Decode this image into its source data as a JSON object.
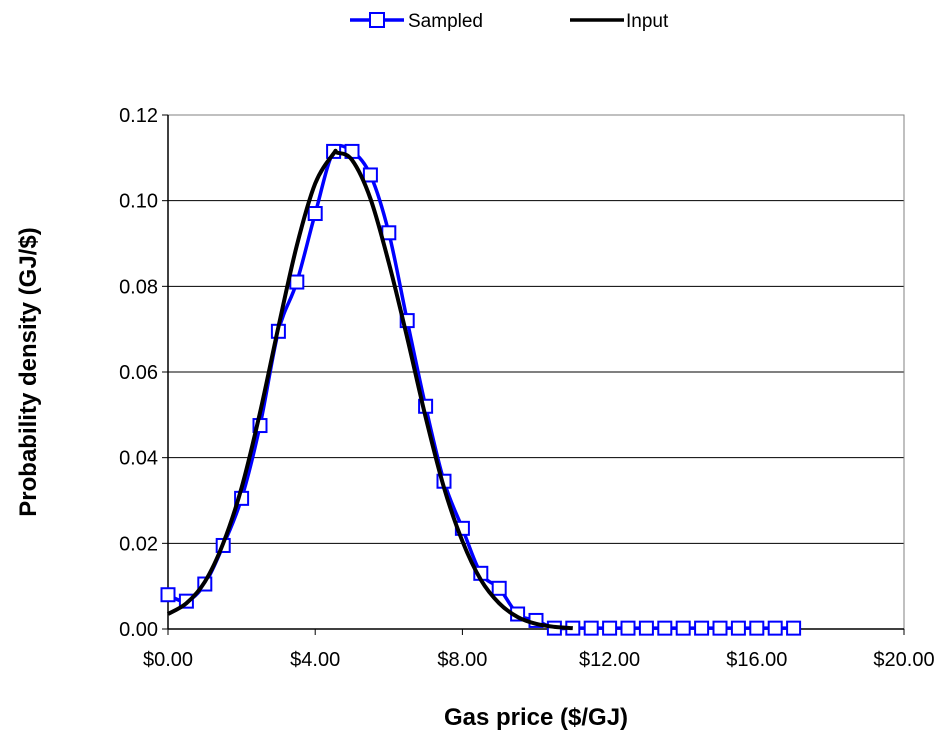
{
  "chart_data": {
    "type": "line",
    "title": "",
    "xlabel": "Gas price ($/GJ)",
    "ylabel": "Probability density (GJ/$)",
    "xlim": [
      0,
      20
    ],
    "ylim": [
      0,
      0.12
    ],
    "x_ticks": [
      0,
      4,
      8,
      12,
      16,
      20
    ],
    "x_tick_labels": [
      "$0.00",
      "$4.00",
      "$8.00",
      "$12.00",
      "$16.00",
      "$20.00"
    ],
    "y_ticks": [
      0,
      0.02,
      0.04,
      0.06,
      0.08,
      0.1,
      0.12
    ],
    "y_tick_labels": [
      "0.00",
      "0.02",
      "0.04",
      "0.06",
      "0.08",
      "0.10",
      "0.12"
    ],
    "grid": "horizontal",
    "legend": "top-center",
    "series": [
      {
        "name": "Sampled",
        "color": "#0000ff",
        "marker": "square",
        "x": [
          0,
          0.5,
          1,
          1.5,
          2,
          2.5,
          3,
          3.5,
          4,
          4.5,
          5,
          5.5,
          6,
          6.5,
          7,
          7.5,
          8,
          8.5,
          9,
          9.5,
          10,
          10.5,
          11,
          11.5,
          12,
          12.5,
          13,
          13.5,
          14,
          14.5,
          15,
          15.5,
          16,
          16.5,
          17
        ],
        "y": [
          0.008,
          0.0065,
          0.0105,
          0.0195,
          0.0305,
          0.0475,
          0.0695,
          0.081,
          0.097,
          0.1115,
          0.1115,
          0.106,
          0.0925,
          0.072,
          0.052,
          0.0345,
          0.0235,
          0.013,
          0.0095,
          0.0035,
          0.002,
          0.0002,
          0.0002,
          0.0002,
          0.0002,
          0.0002,
          0.0002,
          0.0002,
          0.0002,
          0.0002,
          0.0002,
          0.0002,
          0.0002,
          0.0002,
          0.0002
        ]
      },
      {
        "name": "Input",
        "color": "#000000",
        "marker": "none",
        "x": [
          0,
          0.5,
          1,
          1.5,
          2,
          2.5,
          3,
          3.5,
          4,
          4.5,
          4.6,
          5,
          5.5,
          6,
          6.5,
          7,
          7.5,
          8,
          8.5,
          9,
          9.5,
          10,
          10.5,
          11
        ],
        "y": [
          0.0035,
          0.006,
          0.011,
          0.02,
          0.033,
          0.0505,
          0.0705,
          0.0895,
          0.104,
          0.111,
          0.1112,
          0.1095,
          0.1005,
          0.0855,
          0.068,
          0.0495,
          0.033,
          0.0205,
          0.0115,
          0.006,
          0.0028,
          0.0012,
          0.0005,
          0.0002
        ]
      }
    ]
  }
}
